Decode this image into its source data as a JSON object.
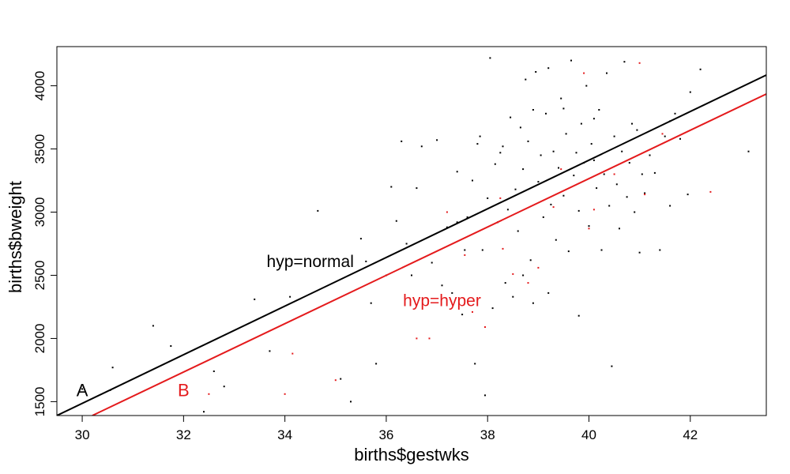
{
  "chart_data": {
    "type": "scatter",
    "title": "",
    "xlabel": "births$gestwks",
    "ylabel": "births$bweight",
    "xlim": [
      29.5,
      43.5
    ],
    "ylim": [
      1390,
      4310
    ],
    "x_ticks": [
      30,
      32,
      34,
      36,
      38,
      40,
      42
    ],
    "y_ticks": [
      1500,
      2000,
      2500,
      3000,
      3500,
      4000
    ],
    "grid": false,
    "legend": "none",
    "colors": {
      "normal": "#000000",
      "hyper": "#e41a1c"
    },
    "lines": [
      {
        "name": "hyp=normal",
        "color": "#000000",
        "x": [
          29.5,
          43.5
        ],
        "y": [
          1390,
          4085
        ]
      },
      {
        "name": "hyp=hyper",
        "color": "#e41a1c",
        "x": [
          30.2,
          43.5
        ],
        "y": [
          1390,
          3935
        ]
      }
    ],
    "annotations": [
      {
        "text": "hyp=normal",
        "x": 34.5,
        "y": 2600,
        "color": "#000000",
        "class": "annot"
      },
      {
        "text": "hyp=hyper",
        "x": 37.1,
        "y": 2290,
        "color": "#e41a1c",
        "class": "annot"
      },
      {
        "text": "A",
        "x": 30.0,
        "y": 1580,
        "color": "#000000",
        "class": "letter"
      },
      {
        "text": "B",
        "x": 32.0,
        "y": 1580,
        "color": "#e41a1c",
        "class": "letter"
      }
    ],
    "series": [
      {
        "name": "hyp=normal",
        "color": "#000000",
        "points": [
          [
            30.0,
            1600
          ],
          [
            30.6,
            1770
          ],
          [
            30.55,
            1590
          ],
          [
            31.4,
            2100
          ],
          [
            31.75,
            1940
          ],
          [
            32.4,
            1420
          ],
          [
            32.6,
            1740
          ],
          [
            32.8,
            1620
          ],
          [
            33.4,
            2310
          ],
          [
            33.7,
            1900
          ],
          [
            34.1,
            2330
          ],
          [
            34.65,
            3010
          ],
          [
            35.1,
            1680
          ],
          [
            35.3,
            1500
          ],
          [
            35.5,
            2790
          ],
          [
            35.6,
            2610
          ],
          [
            35.7,
            2280
          ],
          [
            35.8,
            1800
          ],
          [
            36.0,
            2500
          ],
          [
            36.1,
            3200
          ],
          [
            36.2,
            2930
          ],
          [
            36.3,
            3560
          ],
          [
            36.4,
            2750
          ],
          [
            36.5,
            2500
          ],
          [
            36.6,
            3190
          ],
          [
            36.7,
            3520
          ],
          [
            36.9,
            2600
          ],
          [
            37.0,
            3570
          ],
          [
            37.1,
            2420
          ],
          [
            37.2,
            2880
          ],
          [
            37.3,
            2360
          ],
          [
            37.4,
            3320
          ],
          [
            37.5,
            2190
          ],
          [
            37.55,
            2700
          ],
          [
            37.6,
            2960
          ],
          [
            37.7,
            3250
          ],
          [
            37.75,
            1800
          ],
          [
            37.8,
            3540
          ],
          [
            37.85,
            3600
          ],
          [
            37.9,
            2700
          ],
          [
            37.95,
            1550
          ],
          [
            38.0,
            3110
          ],
          [
            38.05,
            4220
          ],
          [
            38.1,
            2240
          ],
          [
            38.15,
            3380
          ],
          [
            38.2,
            2920
          ],
          [
            38.25,
            3470
          ],
          [
            38.3,
            3520
          ],
          [
            38.35,
            2440
          ],
          [
            38.4,
            3020
          ],
          [
            38.45,
            3750
          ],
          [
            38.5,
            2330
          ],
          [
            38.55,
            3180
          ],
          [
            38.6,
            2850
          ],
          [
            38.65,
            3670
          ],
          [
            38.7,
            3340
          ],
          [
            38.75,
            4050
          ],
          [
            38.8,
            3560
          ],
          [
            38.85,
            2620
          ],
          [
            38.9,
            3810
          ],
          [
            38.95,
            4110
          ],
          [
            39.0,
            3240
          ],
          [
            39.05,
            3450
          ],
          [
            39.1,
            2960
          ],
          [
            39.15,
            3780
          ],
          [
            39.2,
            4140
          ],
          [
            39.25,
            3060
          ],
          [
            39.3,
            3480
          ],
          [
            39.35,
            2780
          ],
          [
            39.4,
            3350
          ],
          [
            39.45,
            3900
          ],
          [
            39.5,
            3130
          ],
          [
            39.55,
            3620
          ],
          [
            39.6,
            2690
          ],
          [
            39.65,
            4200
          ],
          [
            39.7,
            3290
          ],
          [
            39.75,
            3470
          ],
          [
            39.8,
            3010
          ],
          [
            39.85,
            3700
          ],
          [
            39.9,
            3390
          ],
          [
            39.95,
            4000
          ],
          [
            40.0,
            2890
          ],
          [
            40.05,
            3540
          ],
          [
            40.1,
            3410
          ],
          [
            40.15,
            3190
          ],
          [
            40.2,
            3810
          ],
          [
            40.25,
            2700
          ],
          [
            40.3,
            3300
          ],
          [
            40.35,
            4100
          ],
          [
            40.4,
            3050
          ],
          [
            40.45,
            1780
          ],
          [
            40.5,
            3600
          ],
          [
            40.55,
            3220
          ],
          [
            40.6,
            2870
          ],
          [
            40.65,
            3480
          ],
          [
            40.7,
            4190
          ],
          [
            40.75,
            3120
          ],
          [
            40.8,
            3390
          ],
          [
            40.85,
            3700
          ],
          [
            40.9,
            3000
          ],
          [
            40.95,
            3650
          ],
          [
            41.0,
            2680
          ],
          [
            41.05,
            3300
          ],
          [
            41.1,
            3150
          ],
          [
            41.2,
            3450
          ],
          [
            41.3,
            3310
          ],
          [
            41.4,
            2700
          ],
          [
            41.5,
            3600
          ],
          [
            41.6,
            3050
          ],
          [
            41.7,
            3780
          ],
          [
            41.8,
            3580
          ],
          [
            41.95,
            3140
          ],
          [
            42.0,
            3950
          ],
          [
            42.2,
            4130
          ],
          [
            43.15,
            3480
          ],
          [
            39.2,
            2360
          ],
          [
            38.7,
            2500
          ],
          [
            39.8,
            2180
          ],
          [
            37.4,
            2920
          ],
          [
            38.9,
            2280
          ],
          [
            40.1,
            3740
          ],
          [
            39.5,
            3820
          ],
          [
            41.6,
            3720
          ]
        ]
      },
      {
        "name": "hyp=hyper",
        "color": "#e41a1c",
        "points": [
          [
            32.5,
            1560
          ],
          [
            34.15,
            1880
          ],
          [
            34.0,
            1560
          ],
          [
            35.0,
            1670
          ],
          [
            36.6,
            2000
          ],
          [
            36.85,
            2000
          ],
          [
            37.2,
            3000
          ],
          [
            37.55,
            2660
          ],
          [
            37.7,
            2210
          ],
          [
            37.95,
            2090
          ],
          [
            38.25,
            3110
          ],
          [
            38.5,
            2510
          ],
          [
            38.8,
            2440
          ],
          [
            39.0,
            2560
          ],
          [
            39.3,
            3040
          ],
          [
            39.45,
            3340
          ],
          [
            40.0,
            2870
          ],
          [
            40.1,
            3020
          ],
          [
            40.5,
            3300
          ],
          [
            41.0,
            4180
          ],
          [
            41.1,
            3140
          ],
          [
            41.45,
            3620
          ],
          [
            42.4,
            3160
          ],
          [
            39.9,
            4100
          ],
          [
            38.3,
            2710
          ]
        ]
      }
    ]
  }
}
